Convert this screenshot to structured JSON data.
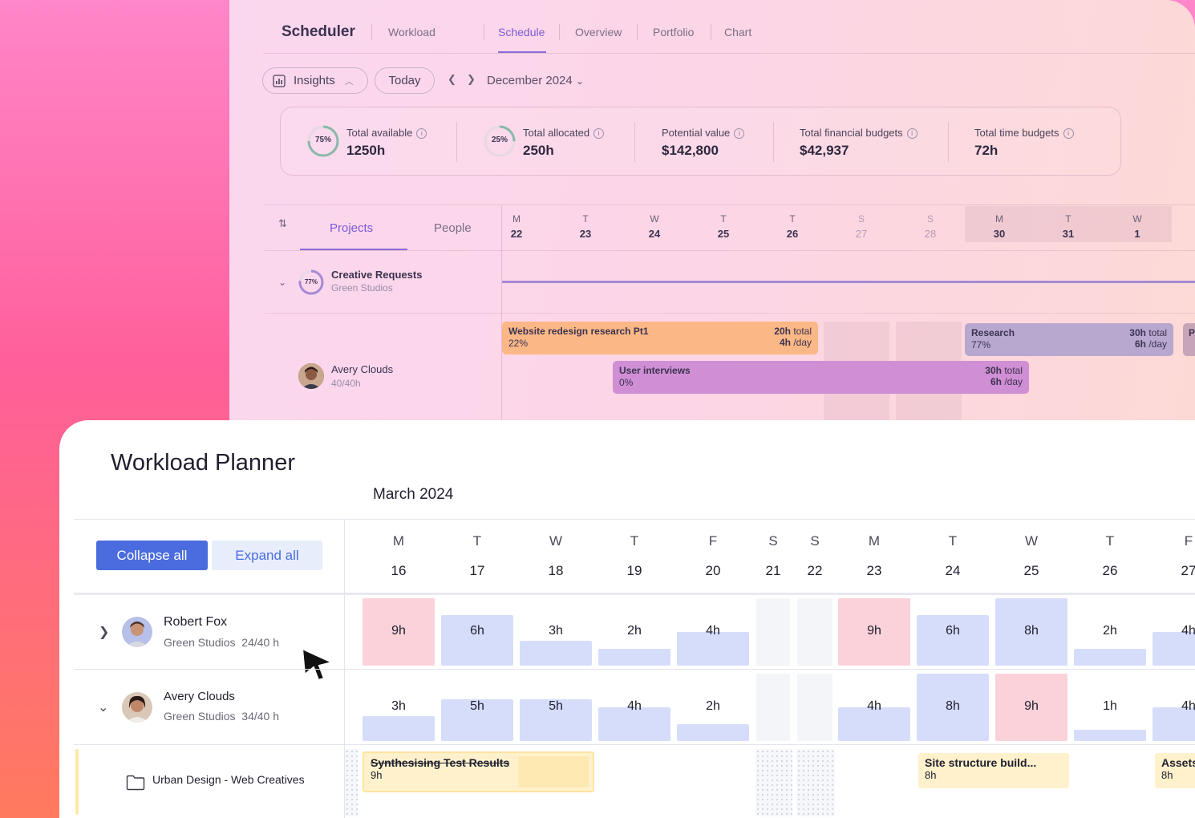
{
  "scheduler": {
    "title": "Scheduler",
    "tabs": [
      "Workload",
      "Schedule",
      "Overview",
      "Portfolio",
      "Chart"
    ],
    "active_tab": "Schedule",
    "insights_label": "Insights",
    "today_label": "Today",
    "month": "December 2024",
    "stats": [
      {
        "label": "Total available",
        "value": "1250h",
        "ring": "75%"
      },
      {
        "label": "Total allocated",
        "value": "250h",
        "ring": "25%"
      },
      {
        "label": "Potential value",
        "value": "$142,800"
      },
      {
        "label": "Total financial budgets",
        "value": "$42,937"
      },
      {
        "label": "Total time budgets",
        "value": "72h"
      }
    ],
    "view_tabs": [
      "Projects",
      "People"
    ],
    "days": [
      {
        "l": "M",
        "n": "22"
      },
      {
        "l": "T",
        "n": "23"
      },
      {
        "l": "W",
        "n": "24"
      },
      {
        "l": "T",
        "n": "25"
      },
      {
        "l": "T",
        "n": "26"
      },
      {
        "l": "S",
        "n": "27"
      },
      {
        "l": "S",
        "n": "28"
      },
      {
        "l": "M",
        "n": "30"
      },
      {
        "l": "T",
        "n": "31"
      },
      {
        "l": "W",
        "n": "1"
      }
    ],
    "project": {
      "name": "Creative Requests",
      "client": "Green Studios",
      "ring": "77%"
    },
    "person": {
      "name": "Avery Clouds",
      "capacity": "40/40h"
    },
    "tasks": [
      {
        "name": "Website redesign research Pt1",
        "pct": "22%",
        "total": "20h",
        "total_suffix": "total",
        "perday": "4h",
        "perday_suffix": "/day"
      },
      {
        "name": "Research",
        "pct": "77%",
        "total": "30h",
        "total_suffix": "total",
        "perday": "6h",
        "perday_suffix": "/day"
      },
      {
        "name": "User interviews",
        "pct": "0%",
        "total": "30h",
        "total_suffix": "total",
        "perday": "6h",
        "perday_suffix": "/day"
      }
    ],
    "cut_task_initial": "P"
  },
  "planner": {
    "title": "Workload Planner",
    "month": "March 2024",
    "collapse_label": "Collapse all",
    "expand_label": "Expand all",
    "days": [
      {
        "l": "M",
        "n": "16"
      },
      {
        "l": "T",
        "n": "17"
      },
      {
        "l": "W",
        "n": "18"
      },
      {
        "l": "T",
        "n": "19"
      },
      {
        "l": "F",
        "n": "20"
      },
      {
        "l": "S",
        "n": "21"
      },
      {
        "l": "S",
        "n": "22"
      },
      {
        "l": "M",
        "n": "23"
      },
      {
        "l": "T",
        "n": "24"
      },
      {
        "l": "W",
        "n": "25"
      },
      {
        "l": "T",
        "n": "26"
      },
      {
        "l": "F",
        "n": "27"
      }
    ],
    "people": [
      {
        "name": "Robert Fox",
        "org": "Green Studios",
        "hours": "24/40 h",
        "cells": [
          "9h",
          "6h",
          "3h",
          "2h",
          "4h",
          "",
          "",
          "9h",
          "6h",
          "8h",
          "2h",
          "4h"
        ]
      },
      {
        "name": "Avery Clouds",
        "org": "Green Studios",
        "hours": "34/40 h",
        "cells": [
          "3h",
          "5h",
          "5h",
          "4h",
          "2h",
          "",
          "",
          "4h",
          "8h",
          "9h",
          "1h",
          "4h"
        ]
      }
    ],
    "project_row": {
      "name": "Urban Design - Web Creatives"
    },
    "tasks": [
      {
        "name": "Synthesising Test Results",
        "hours": "9h"
      },
      {
        "name": "Site structure build...",
        "hours": "8h"
      },
      {
        "name": "Assets",
        "hours": "8h"
      }
    ]
  },
  "colors": {
    "accent": "#4a6cdf",
    "purple": "#8a6ad8",
    "over": "#fbd2da",
    "bar": "#d6ddfb",
    "task_yellow": "#fff1cc"
  }
}
